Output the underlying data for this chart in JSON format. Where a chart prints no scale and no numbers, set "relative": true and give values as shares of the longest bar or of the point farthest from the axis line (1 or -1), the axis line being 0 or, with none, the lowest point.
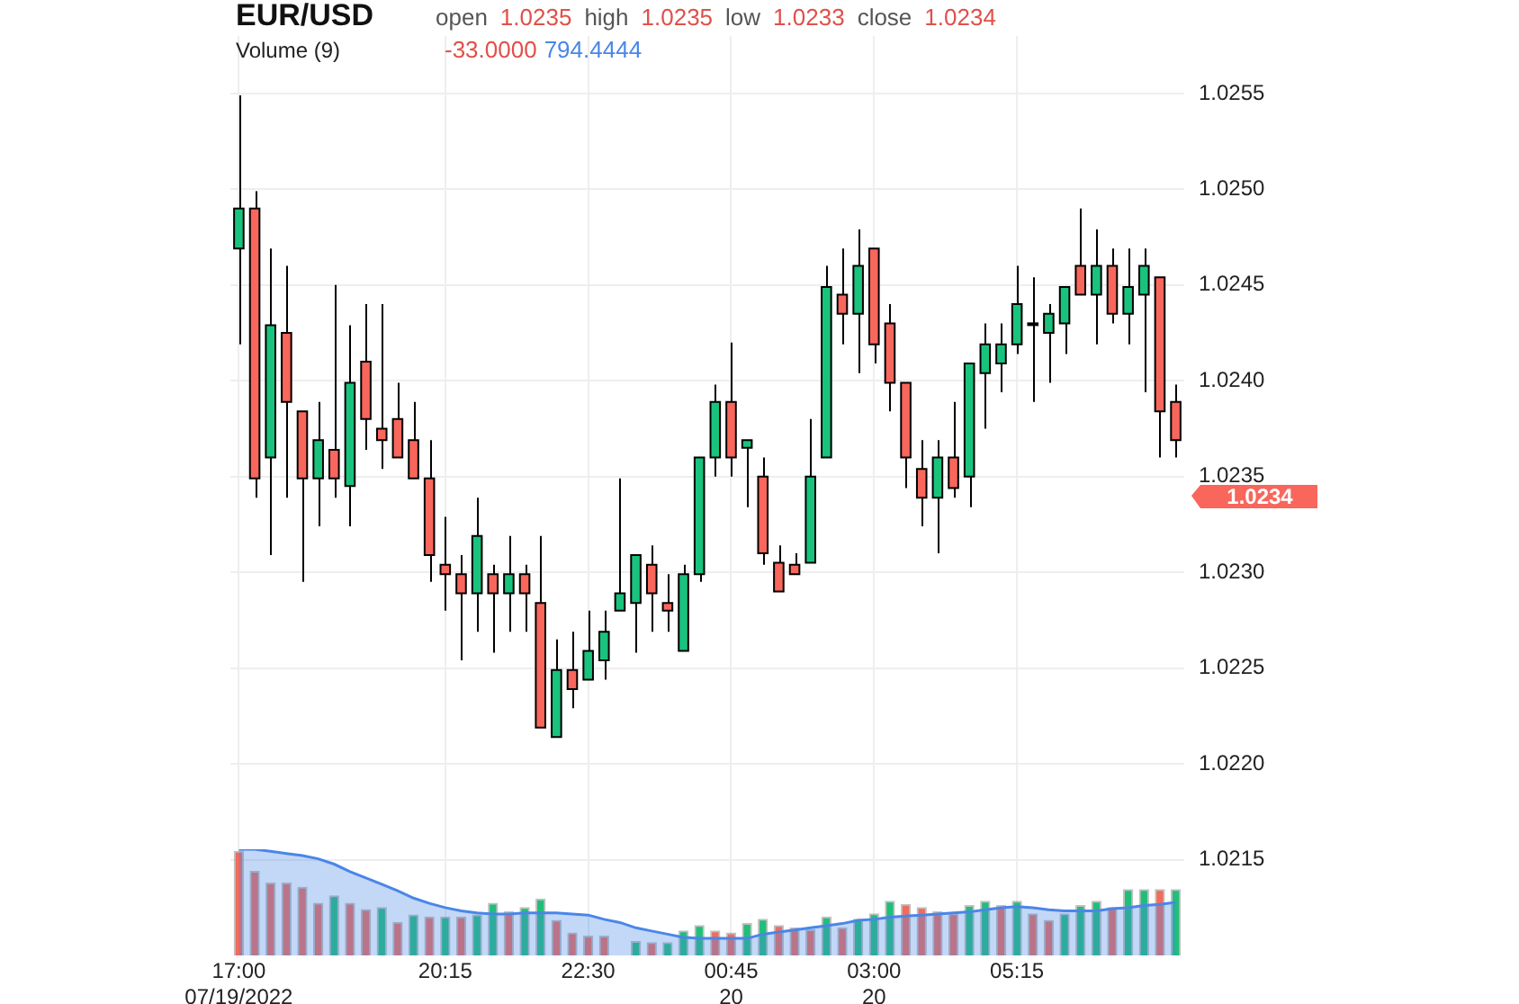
{
  "chart_data": [
    {
      "type": "candlestick",
      "title": "EUR/USD",
      "annotations": [
        "open",
        "1.0235",
        "high",
        "1.0235",
        "low",
        "1.0233",
        "close",
        "1.0234",
        "1.0234"
      ],
      "grid": true,
      "legend": false,
      "tick_labels": "y",
      "xlim": [
        "2022-07-19T16:52",
        "2022-07-20T07:53"
      ],
      "xticks": [
        {
          "value": "2022-07-19T17:00",
          "label": null
        },
        {
          "value": "2022-07-19T20:15",
          "label": null
        },
        {
          "value": "2022-07-19T22:30",
          "label": null
        },
        {
          "value": "2022-07-20T00:45",
          "label": null
        },
        {
          "value": "2022-07-20T03:00",
          "label": null
        },
        {
          "value": "2022-07-20T05:15",
          "label": null
        }
      ],
      "ylim": [
        1.021,
        1.0258
      ],
      "yticks": [
        1.0215,
        {
          "value": 1.022,
          "label": "1.0220"
        },
        1.0225,
        {
          "value": 1.023,
          "label": "1.0230"
        },
        1.0235,
        {
          "value": 1.024,
          "label": "1.0240"
        },
        1.0245,
        {
          "value": 1.025,
          "label": "1.0250"
        },
        1.0255
      ],
      "x": [
        "2022-07-19T17:00",
        "2022-07-19T17:15",
        "2022-07-19T17:30",
        "2022-07-19T17:45",
        "2022-07-19T18:00",
        "2022-07-19T18:15",
        "2022-07-19T18:30",
        "2022-07-19T18:45",
        "2022-07-19T19:00",
        "2022-07-19T19:15",
        "2022-07-19T19:30",
        "2022-07-19T19:45",
        "2022-07-19T20:00",
        "2022-07-19T20:15",
        "2022-07-19T20:30",
        "2022-07-19T20:45",
        "2022-07-19T21:00",
        "2022-07-19T21:15",
        "2022-07-19T21:30",
        "2022-07-19T21:45",
        "2022-07-19T22:00",
        "2022-07-19T22:15",
        "2022-07-19T22:30",
        "2022-07-19T22:45",
        "2022-07-19T23:00",
        "2022-07-19T23:15",
        "2022-07-19T23:30",
        "2022-07-19T23:45",
        "2022-07-20T00:00",
        "2022-07-20T00:15",
        "2022-07-20T00:30",
        "2022-07-20T00:45",
        "2022-07-20T01:00",
        "2022-07-20T01:15",
        "2022-07-20T01:30",
        "2022-07-20T01:45",
        "2022-07-20T02:00",
        "2022-07-20T02:15",
        "2022-07-20T02:30",
        "2022-07-20T02:45",
        "2022-07-20T03:00",
        "2022-07-20T03:15",
        "2022-07-20T03:30",
        "2022-07-20T03:45",
        "2022-07-20T04:00",
        "2022-07-20T04:15",
        "2022-07-20T04:30",
        "2022-07-20T04:45",
        "2022-07-20T05:00",
        "2022-07-20T05:15",
        "2022-07-20T05:30",
        "2022-07-20T05:45",
        "2022-07-20T06:00",
        "2022-07-20T06:15",
        "2022-07-20T06:30",
        "2022-07-20T06:45",
        "2022-07-20T07:00",
        "2022-07-20T07:15",
        "2022-07-20T07:30",
        "2022-07-20T07:45"
      ],
      "ohlc": [
        [
          1.02469,
          1.02549,
          1.02419,
          1.0249
        ],
        [
          1.0249,
          1.02499,
          1.02339,
          1.02349
        ],
        [
          1.0236,
          1.02469,
          1.02309,
          1.02429
        ],
        [
          1.02425,
          1.0246,
          1.02339,
          1.02389
        ],
        [
          1.02384,
          1.02384,
          1.02295,
          1.02349
        ],
        [
          1.02349,
          1.02389,
          1.02324,
          1.02369
        ],
        [
          1.02364,
          1.0245,
          1.02339,
          1.02349
        ],
        [
          1.02345,
          1.02429,
          1.02324,
          1.02399
        ],
        [
          1.0241,
          1.0244,
          1.02364,
          1.0238
        ],
        [
          1.02375,
          1.0244,
          1.02354,
          1.02369
        ],
        [
          1.0238,
          1.02399,
          1.0236,
          1.0236
        ],
        [
          1.02369,
          1.02389,
          1.02349,
          1.02349
        ],
        [
          1.02349,
          1.02369,
          1.02295,
          1.02309
        ],
        [
          1.02304,
          1.02329,
          1.0228,
          1.02299
        ],
        [
          1.02299,
          1.02309,
          1.02254,
          1.02289
        ],
        [
          1.02289,
          1.02339,
          1.02269,
          1.02319
        ],
        [
          1.02299,
          1.02304,
          1.02258,
          1.02289
        ],
        [
          1.02289,
          1.02319,
          1.02269,
          1.02299
        ],
        [
          1.02299,
          1.02304,
          1.02269,
          1.02289
        ],
        [
          1.02284,
          1.02319,
          1.02219,
          1.02219
        ],
        [
          1.02214,
          1.02265,
          1.02214,
          1.02249
        ],
        [
          1.02249,
          1.02269,
          1.02229,
          1.02239
        ],
        [
          1.02244,
          1.0228,
          1.02244,
          1.02259
        ],
        [
          1.02254,
          1.0228,
          1.02244,
          1.02269
        ],
        [
          1.0228,
          1.02349,
          1.0228,
          1.02289
        ],
        [
          1.02284,
          1.02309,
          1.02258,
          1.02309
        ],
        [
          1.02304,
          1.02314,
          1.02269,
          1.02289
        ],
        [
          1.02284,
          1.02299,
          1.02269,
          1.0228
        ],
        [
          1.02259,
          1.02304,
          1.02259,
          1.02299
        ],
        [
          1.02299,
          1.0236,
          1.02295,
          1.0236
        ],
        [
          1.0236,
          1.02398,
          1.0235,
          1.02389
        ],
        [
          1.02389,
          1.0242,
          1.0235,
          1.0236
        ],
        [
          1.02365,
          1.02369,
          1.02334,
          1.02369
        ],
        [
          1.0235,
          1.0236,
          1.02304,
          1.0231
        ],
        [
          1.02305,
          1.02314,
          1.0229,
          1.0229
        ],
        [
          1.02304,
          1.0231,
          1.02299,
          1.02299
        ],
        [
          1.02305,
          1.0238,
          1.02305,
          1.0235
        ],
        [
          1.0236,
          1.0246,
          1.0236,
          1.02449
        ],
        [
          1.02445,
          1.02469,
          1.02419,
          1.02435
        ],
        [
          1.02435,
          1.02479,
          1.02404,
          1.0246
        ],
        [
          1.02469,
          1.02469,
          1.02409,
          1.02419
        ],
        [
          1.0243,
          1.0244,
          1.02384,
          1.02399
        ],
        [
          1.02399,
          1.02399,
          1.02344,
          1.0236
        ],
        [
          1.02354,
          1.02369,
          1.02324,
          1.02339
        ],
        [
          1.02339,
          1.02369,
          1.0231,
          1.0236
        ],
        [
          1.0236,
          1.02389,
          1.02339,
          1.02344
        ],
        [
          1.0235,
          1.02409,
          1.02334,
          1.02409
        ],
        [
          1.02404,
          1.0243,
          1.02375,
          1.02419
        ],
        [
          1.02409,
          1.0243,
          1.02394,
          1.02419
        ],
        [
          1.02419,
          1.0246,
          1.02414,
          1.0244
        ],
        [
          1.0243,
          1.02454,
          1.02389,
          1.0243
        ],
        [
          1.02425,
          1.0244,
          1.02399,
          1.02435
        ],
        [
          1.0243,
          1.02449,
          1.02414,
          1.02449
        ],
        [
          1.0246,
          1.0249,
          1.02445,
          1.02445
        ],
        [
          1.02445,
          1.02479,
          1.02419,
          1.0246
        ],
        [
          1.0246,
          1.02469,
          1.0243,
          1.02435
        ],
        [
          1.02435,
          1.02469,
          1.02419,
          1.02449
        ],
        [
          1.02445,
          1.02469,
          1.02394,
          1.0246
        ],
        [
          1.02454,
          1.02454,
          1.0236,
          1.02384
        ],
        [
          1.02389,
          1.02398,
          1.0236,
          1.02369
        ]
      ],
      "colors": [
        "#19c37d",
        "#f8665c",
        "#19c37d",
        "#f8665c",
        "#f8665c",
        "#19c37d",
        "#f8665c",
        "#19c37d",
        "#f8665c",
        "#f8665c",
        "#f8665c",
        "#f8665c",
        "#f8665c",
        "#f8665c",
        "#f8665c",
        "#19c37d",
        "#f8665c",
        "#19c37d",
        "#f8665c",
        "#f8665c",
        "#19c37d",
        "#f8665c",
        "#19c37d",
        "#19c37d",
        "#19c37d",
        "#19c37d",
        "#f8665c",
        "#f8665c",
        "#19c37d",
        "#19c37d",
        "#19c37d",
        "#f8665c",
        "#19c37d",
        "#f8665c",
        "#f8665c",
        "#f8665c",
        "#19c37d",
        "#19c37d",
        "#f8665c",
        "#19c37d",
        "#f8665c",
        "#f8665c",
        "#f8665c",
        "#f8665c",
        "#19c37d",
        "#f8665c",
        "#19c37d",
        "#19c37d",
        "#19c37d",
        "#19c37d",
        "#19c37d",
        "#19c37d",
        "#19c37d",
        "#f8665c",
        "#19c37d",
        "#f8665c",
        "#19c37d",
        "#19c37d",
        "#f8665c",
        "#f8665c"
      ]
    },
    {
      "type": "bar",
      "title": "Volume (9)",
      "annotations": [
        "-33.0000",
        "794.4444"
      ],
      "relative": true,
      "legend": false,
      "tick_labels": "x",
      "xlim": [
        "2022-07-19T16:52",
        "2022-07-20T07:53"
      ],
      "xticks": [
        {
          "value": "2022-07-19T17:00",
          "label": "17:00\n07/19/2022"
        },
        {
          "value": "2022-07-19T20:15",
          "label": "20:15"
        },
        {
          "value": "2022-07-19T22:30",
          "label": "22:30"
        },
        {
          "value": "2022-07-20T00:45",
          "label": "00:45\n20"
        },
        {
          "value": "2022-07-20T03:00",
          "label": "03:00\n20"
        },
        {
          "value": "2022-07-20T05:15",
          "label": "05:15"
        }
      ],
      "x": [
        "2022-07-19T17:00",
        "2022-07-19T17:15",
        "2022-07-19T17:30",
        "2022-07-19T17:45",
        "2022-07-19T18:00",
        "2022-07-19T18:15",
        "2022-07-19T18:30",
        "2022-07-19T18:45",
        "2022-07-19T19:00",
        "2022-07-19T19:15",
        "2022-07-19T19:30",
        "2022-07-19T19:45",
        "2022-07-19T20:00",
        "2022-07-19T20:15",
        "2022-07-19T20:30",
        "2022-07-19T20:45",
        "2022-07-19T21:00",
        "2022-07-19T21:15",
        "2022-07-19T21:30",
        "2022-07-19T21:45",
        "2022-07-19T22:00",
        "2022-07-19T22:15",
        "2022-07-19T22:30",
        "2022-07-19T22:45",
        "2022-07-19T23:00",
        "2022-07-19T23:15",
        "2022-07-19T23:30",
        "2022-07-19T23:45",
        "2022-07-20T00:00",
        "2022-07-20T00:15",
        "2022-07-20T00:30",
        "2022-07-20T00:45",
        "2022-07-20T01:00",
        "2022-07-20T01:15",
        "2022-07-20T01:30",
        "2022-07-20T01:45",
        "2022-07-20T02:00",
        "2022-07-20T02:15",
        "2022-07-20T02:30",
        "2022-07-20T02:45",
        "2022-07-20T03:00",
        "2022-07-20T03:15",
        "2022-07-20T03:30",
        "2022-07-20T03:45",
        "2022-07-20T04:00",
        "2022-07-20T04:15",
        "2022-07-20T04:30",
        "2022-07-20T04:45",
        "2022-07-20T05:00",
        "2022-07-20T05:15",
        "2022-07-20T05:30",
        "2022-07-20T05:45",
        "2022-07-20T06:00",
        "2022-07-20T06:15",
        "2022-07-20T06:30",
        "2022-07-20T06:45",
        "2022-07-20T07:00",
        "2022-07-20T07:15",
        "2022-07-20T07:30",
        "2022-07-20T07:45"
      ],
      "series": [
        {
          "type": "bar",
          "colors": [
            "#f26b5b",
            "#f26b5b",
            "#f26b5b",
            "#f26b5b",
            "#f26b5b",
            "#f26b5b",
            "#1fbf7a",
            "#f26b5b",
            "#f26b5b",
            "#1fbf7a",
            "#f26b5b",
            "#1fbf7a",
            "#f26b5b",
            "#1fbf7a",
            "#f26b5b",
            "#1fbf7a",
            "#1fbf7a",
            "#f26b5b",
            "#1fbf7a",
            "#1fbf7a",
            "#f26b5b",
            "#f26b5b",
            "#f26b5b",
            "#f26b5b",
            "#f26b5b",
            "#1fbf7a",
            "#f26b5b",
            "#1fbf7a",
            "#1fbf7a",
            "#1fbf7a",
            "#f26b5b",
            "#f26b5b",
            "#1fbf7a",
            "#1fbf7a",
            "#f26b5b",
            "#f26b5b",
            "#f26b5b",
            "#1fbf7a",
            "#f26b5b",
            "#1fbf7a",
            "#1fbf7a",
            "#1fbf7a",
            "#f26b5b",
            "#f26b5b",
            "#f26b5b",
            "#f26b5b",
            "#1fbf7a",
            "#1fbf7a",
            "#f26b5b",
            "#1fbf7a",
            "#f26b5b",
            "#f26b5b",
            "#1fbf7a",
            "#1fbf7a",
            "#1fbf7a",
            "#f26b5b",
            "#1fbf7a",
            "#1fbf7a",
            "#f26b5b",
            "#1fbf7a"
          ],
          "values": [
            0.98,
            0.79,
            0.68,
            0.68,
            0.64,
            0.49,
            0.56,
            0.49,
            0.43,
            0.45,
            0.31,
            0.38,
            0.36,
            0.36,
            0.36,
            0.38,
            0.49,
            0.41,
            0.45,
            0.53,
            0.33,
            0.21,
            0.18,
            0.18,
            0,
            0.13,
            0.12,
            0.12,
            0.23,
            0.28,
            0.23,
            0.21,
            0.3,
            0.34,
            0.28,
            0.26,
            0.24,
            0.36,
            0.26,
            0.34,
            0.39,
            0.51,
            0.48,
            0.45,
            0.41,
            0.39,
            0.47,
            0.51,
            0.47,
            0.51,
            0.39,
            0.33,
            0.39,
            0.47,
            0.51,
            0.45,
            0.62,
            0.62,
            0.62,
            0.62
          ]
        },
        {
          "type": "area",
          "color": "#4a86e8",
          "values": [
            1,
            1,
            0.98,
            0.96,
            0.94,
            0.91,
            0.86,
            0.79,
            0.73,
            0.67,
            0.61,
            0.54,
            0.49,
            0.45,
            0.42,
            0.4,
            0.39,
            0.39,
            0.4,
            0.4,
            0.4,
            0.39,
            0.38,
            0.34,
            0.31,
            0.26,
            0.23,
            0.2,
            0.17,
            0.16,
            0.16,
            0.16,
            0.16,
            0.2,
            0.22,
            0.24,
            0.26,
            0.28,
            0.3,
            0.33,
            0.34,
            0.36,
            0.37,
            0.38,
            0.39,
            0.4,
            0.41,
            0.43,
            0.45,
            0.46,
            0.45,
            0.43,
            0.42,
            0.42,
            0.42,
            0.44,
            0.45,
            0.47,
            0.48,
            0.5
          ]
        }
      ]
    }
  ]
}
